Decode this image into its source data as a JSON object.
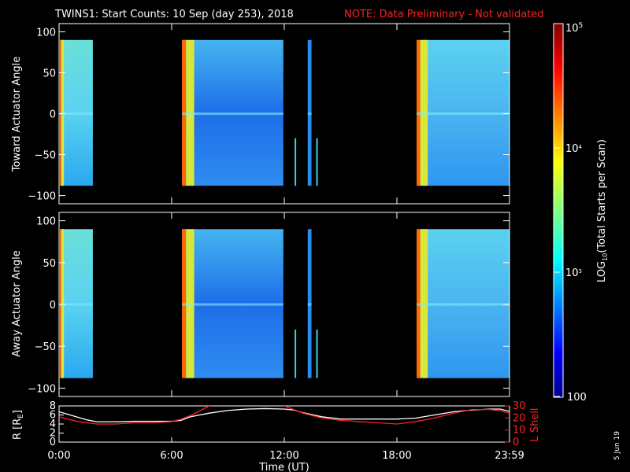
{
  "title": {
    "main": "TWINS1: Start Counts: 10 Sep (day 253), 2018",
    "note": "NOTE: Data Preliminary - Not validated"
  },
  "date_stamp": "5 Jun 19",
  "colors": {
    "note": "#ff2020",
    "r_line": "#ffffff",
    "lshell_line": "#ff2020",
    "axis": "#ffffff"
  },
  "chart_data": [
    {
      "type": "heatmap",
      "panel": "top",
      "ylabel": "Toward Actuator Angle",
      "ylim": [
        -110,
        110
      ],
      "yticks": [
        "100",
        "50",
        "0",
        "−50",
        "−100"
      ],
      "yticks_values": [
        100,
        50,
        0,
        -50,
        -100
      ],
      "xlim_hours": [
        0,
        24
      ],
      "x_tick_hours": [
        0,
        6,
        12,
        18,
        24
      ],
      "angle_range": [
        -88,
        90
      ],
      "data_blocks_hours": [
        [
          0.05,
          1.8
        ],
        [
          6.55,
          11.95
        ],
        [
          13.25,
          13.45
        ],
        [
          19.05,
          24.0
        ]
      ],
      "thin_spikes_hours": [
        12.55,
        13.7
      ],
      "colorbar_log_range": [
        100,
        100000
      ]
    },
    {
      "type": "heatmap",
      "panel": "middle",
      "ylabel": "Away Actuator Angle",
      "ylim": [
        -110,
        110
      ],
      "yticks": [
        "100",
        "50",
        "0",
        "−50",
        "−100"
      ],
      "yticks_values": [
        100,
        50,
        0,
        -50,
        -100
      ],
      "xlim_hours": [
        0,
        24
      ],
      "x_tick_hours": [
        0,
        6,
        12,
        18,
        24
      ],
      "angle_range": [
        -88,
        90
      ],
      "data_blocks_hours": [
        [
          0.05,
          1.8
        ],
        [
          6.55,
          11.95
        ],
        [
          13.25,
          13.45
        ],
        [
          19.05,
          24.0
        ]
      ],
      "thin_spikes_hours": [
        12.55,
        13.7
      ]
    },
    {
      "type": "line",
      "panel": "bottom",
      "ylabel_left": "R [R",
      "ylabel_left_sub": "E",
      "ylabel_left_end": "]",
      "ylabel_right": "L Shell",
      "ylim_left": [
        0,
        8
      ],
      "ylim_right": [
        0,
        30
      ],
      "yticks_left": [
        "0",
        "2",
        "4",
        "6",
        "8"
      ],
      "yticks_right": [
        "0",
        "10",
        "20",
        "30"
      ],
      "xlabel": "Time (UT)",
      "xticks": [
        "0:00",
        "6:00",
        "12:00",
        "18:00",
        "23:59"
      ],
      "x_tick_hours": [
        0,
        6,
        12,
        18,
        24
      ],
      "series": [
        {
          "axis": "left",
          "color": "#ffffff",
          "x": [
            0,
            0.5,
            1,
            1.5,
            2,
            3,
            4,
            5,
            6,
            6.5,
            7,
            8,
            9,
            10,
            11,
            12,
            12.5,
            13,
            14,
            15,
            16,
            17,
            18,
            19,
            20,
            21,
            22,
            22.5,
            23,
            23.5,
            24
          ],
          "y": [
            6.7,
            6.1,
            5.5,
            4.9,
            4.5,
            4.5,
            4.6,
            4.6,
            4.6,
            4.8,
            5.6,
            6.4,
            7.0,
            7.3,
            7.4,
            7.3,
            7.1,
            6.5,
            5.6,
            5.1,
            5.1,
            5.1,
            5.1,
            5.3,
            6.0,
            6.7,
            7.1,
            7.2,
            7.3,
            7.3,
            6.8
          ]
        },
        {
          "axis": "right",
          "color": "#ff2020",
          "x": [
            0,
            0.5,
            1,
            1.5,
            2,
            3,
            4,
            5,
            6,
            6.5,
            7,
            7.5,
            8,
            8.3,
            11.7,
            12,
            12.5,
            13,
            14,
            15,
            16,
            17,
            18,
            19,
            20,
            21,
            22,
            22.5,
            23,
            23.5,
            24
          ],
          "y": [
            21,
            19,
            17,
            16,
            15,
            15,
            16,
            16,
            17,
            19,
            22,
            26,
            30,
            32,
            32,
            30,
            27,
            24,
            20,
            18,
            17,
            16,
            15,
            17,
            20,
            24,
            27,
            27,
            27,
            26,
            24
          ]
        }
      ]
    },
    {
      "type": "heatmap",
      "panel": "colorbar",
      "colorbar_label_pre": "LOG",
      "colorbar_label_sub": "10",
      "colorbar_label_post": "(Total Starts per Scan)",
      "tick_top_base": "10",
      "tick_top_exp": "5",
      "tick_upper_base": "10",
      "tick_upper_exp": "4",
      "tick_lower_base": "10",
      "tick_lower_exp": "3",
      "tick_bottom": "100",
      "log_range": [
        2,
        5
      ]
    }
  ]
}
